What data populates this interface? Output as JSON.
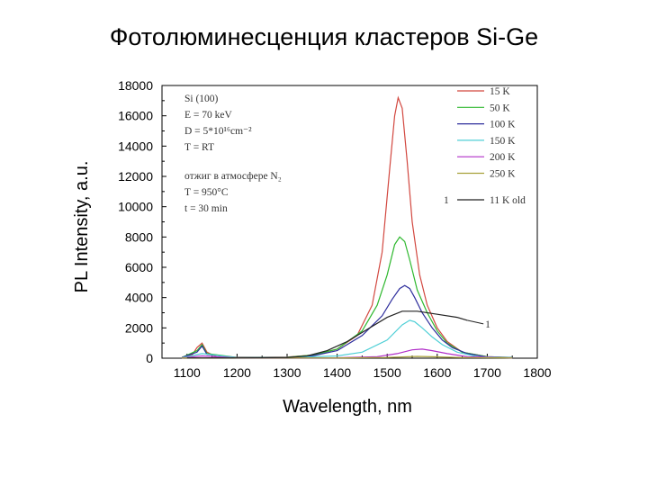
{
  "slide": {
    "title": "Фотолюминесценция кластеров Si-Ge"
  },
  "chart_data": {
    "type": "line",
    "xlabel": "Wavelength, nm",
    "ylabel": "PL Intensity, a.u.",
    "xlim": [
      1050,
      1800
    ],
    "ylim": [
      0,
      18000
    ],
    "xticks": [
      1100,
      1200,
      1300,
      1400,
      1500,
      1600,
      1700,
      1800
    ],
    "yticks": [
      0,
      2000,
      4000,
      6000,
      8000,
      10000,
      12000,
      14000,
      16000,
      18000
    ],
    "grid": false,
    "legend_position": "top-right",
    "annotation_lines": [
      "Si (100)",
      "E = 70 keV",
      "D = 5*10¹⁶cm⁻²",
      "T = RT",
      "отжиг в атмосфере N₂",
      "T = 950°C",
      "t = 30 min"
    ],
    "series": [
      {
        "name": "15 K",
        "color": "#d2473f",
        "x": [
          1090,
          1110,
          1120,
          1130,
          1140,
          1160,
          1250,
          1300,
          1350,
          1400,
          1440,
          1470,
          1490,
          1505,
          1515,
          1522,
          1530,
          1540,
          1550,
          1565,
          1580,
          1600,
          1620,
          1650,
          1700,
          1750
        ],
        "values": [
          80,
          200,
          700,
          1000,
          400,
          70,
          60,
          80,
          200,
          600,
          1500,
          3500,
          7000,
          12500,
          16000,
          17200,
          16500,
          13000,
          9000,
          5500,
          3500,
          2000,
          1100,
          400,
          100,
          50
        ]
      },
      {
        "name": "50 K",
        "color": "#2eb82e",
        "x": [
          1090,
          1120,
          1130,
          1140,
          1200,
          1300,
          1350,
          1400,
          1450,
          1480,
          1500,
          1515,
          1525,
          1535,
          1545,
          1560,
          1580,
          1600,
          1620,
          1650,
          1700,
          1750
        ],
        "values": [
          50,
          500,
          900,
          300,
          50,
          60,
          200,
          600,
          1800,
          3500,
          5500,
          7500,
          8000,
          7700,
          6500,
          4500,
          3000,
          1800,
          1000,
          400,
          100,
          50
        ]
      },
      {
        "name": "100 K",
        "color": "#2d2d9c",
        "x": [
          1090,
          1120,
          1130,
          1140,
          1200,
          1300,
          1350,
          1400,
          1450,
          1490,
          1510,
          1525,
          1535,
          1545,
          1555,
          1570,
          1590,
          1610,
          1630,
          1660,
          1700,
          1750
        ],
        "values": [
          50,
          400,
          800,
          250,
          40,
          50,
          150,
          500,
          1500,
          2800,
          3900,
          4600,
          4800,
          4600,
          4000,
          3000,
          2000,
          1200,
          700,
          300,
          80,
          40
        ]
      },
      {
        "name": "150 K",
        "color": "#4fcfd6",
        "x": [
          1090,
          1130,
          1200,
          1300,
          1400,
          1450,
          1500,
          1530,
          1545,
          1555,
          1570,
          1590,
          1610,
          1640,
          1680,
          1750
        ],
        "values": [
          30,
          300,
          30,
          40,
          150,
          400,
          1200,
          2200,
          2500,
          2400,
          2000,
          1400,
          900,
          400,
          100,
          30
        ]
      },
      {
        "name": "200 K",
        "color": "#b12ec9",
        "x": [
          1090,
          1130,
          1200,
          1400,
          1480,
          1520,
          1550,
          1570,
          1590,
          1620,
          1660,
          1750
        ],
        "values": [
          20,
          150,
          20,
          30,
          100,
          300,
          550,
          600,
          500,
          300,
          100,
          20
        ]
      },
      {
        "name": "250 K",
        "color": "#a8a13a",
        "x": [
          1090,
          1200,
          1400,
          1500,
          1560,
          1600,
          1650,
          1750
        ],
        "values": [
          15,
          15,
          20,
          50,
          120,
          90,
          40,
          15
        ]
      },
      {
        "name": "11 K old",
        "color": "#222222",
        "x": [
          1100,
          1200,
          1300,
          1340,
          1380,
          1420,
          1460,
          1500,
          1530,
          1560,
          1600,
          1640,
          1660
        ],
        "values": [
          20,
          20,
          40,
          150,
          500,
          1100,
          1900,
          2700,
          3100,
          3100,
          2900,
          2700,
          2500
        ]
      }
    ],
    "series_label": {
      "text": "1",
      "series": "11 K old"
    },
    "legend_marker_label": "1"
  }
}
